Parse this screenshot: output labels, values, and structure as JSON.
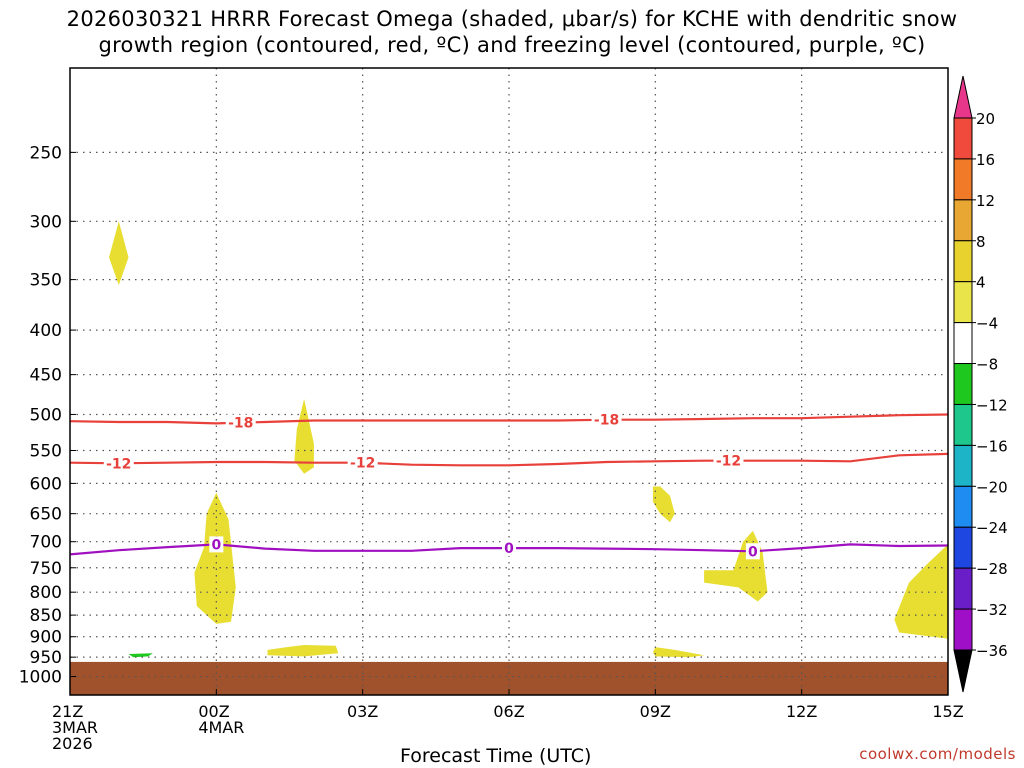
{
  "chart_data": {
    "type": "time-height-section",
    "title_line1": "2026030321 HRRR Forecast Omega (shaded, μbar/s) for KCHE with dendritic snow",
    "title_line2": "growth region (contoured, red, ºC) and freezing level (contoured, purple, ºC)",
    "xlabel": "Forecast Time (UTC)",
    "attribution": "coolwx.com/models",
    "x_range_hours": [
      0,
      18
    ],
    "x_ticks": [
      {
        "hour": 0,
        "lines": [
          "21Z",
          "3MAR",
          "2026"
        ]
      },
      {
        "hour": 3,
        "lines": [
          "00Z",
          "4MAR"
        ]
      },
      {
        "hour": 6,
        "lines": [
          "03Z"
        ]
      },
      {
        "hour": 9,
        "lines": [
          "06Z"
        ]
      },
      {
        "hour": 12,
        "lines": [
          "09Z"
        ]
      },
      {
        "hour": 15,
        "lines": [
          "12Z"
        ]
      },
      {
        "hour": 18,
        "lines": [
          "15Z"
        ]
      }
    ],
    "y_axis": "pressure (hPa)",
    "y_range_hpa": [
      1050,
      200
    ],
    "y_ticks": [
      250,
      300,
      350,
      400,
      450,
      500,
      550,
      600,
      650,
      700,
      750,
      800,
      850,
      900,
      950,
      1000
    ],
    "colorbar": {
      "labels": [
        20,
        16,
        12,
        8,
        4,
        -4,
        -8,
        -12,
        -16,
        -20,
        -24,
        -28,
        -32,
        -36
      ],
      "colors": [
        "#e8368a",
        "#f04a3c",
        "#f07a28",
        "#e8a632",
        "#e8d22e",
        "#e8e44a",
        "#ffffff",
        "#1fc81f",
        "#1ec88c",
        "#1eb4c8",
        "#1e8cf0",
        "#1e46e0",
        "#6a1ec8",
        "#a00fc8",
        "#a8a8a8",
        "#000000"
      ]
    },
    "contours": [
      {
        "name": "-18 °C isotherm",
        "color": "#e8403a",
        "label": "-18",
        "points": [
          [
            0,
            509
          ],
          [
            1,
            510
          ],
          [
            2,
            510
          ],
          [
            3,
            512
          ],
          [
            4,
            510
          ],
          [
            5,
            508
          ],
          [
            6,
            508
          ],
          [
            7,
            508
          ],
          [
            8,
            508
          ],
          [
            9,
            508
          ],
          [
            10,
            508
          ],
          [
            11,
            507
          ],
          [
            12,
            507
          ],
          [
            13,
            506
          ],
          [
            14,
            505
          ],
          [
            15,
            505
          ],
          [
            16,
            503
          ],
          [
            17,
            501
          ],
          [
            18,
            500
          ]
        ],
        "label_hours": [
          3.5,
          11
        ]
      },
      {
        "name": "-12 °C isotherm",
        "color": "#e8403a",
        "label": "-12",
        "points": [
          [
            0,
            568
          ],
          [
            1,
            569
          ],
          [
            2,
            568
          ],
          [
            3,
            567
          ],
          [
            4,
            567
          ],
          [
            5,
            568
          ],
          [
            6,
            568
          ],
          [
            7,
            571
          ],
          [
            8,
            572
          ],
          [
            9,
            572
          ],
          [
            10,
            570
          ],
          [
            11,
            567
          ],
          [
            12,
            566
          ],
          [
            13,
            565
          ],
          [
            14,
            565
          ],
          [
            15,
            565
          ],
          [
            16,
            566
          ],
          [
            17,
            557
          ],
          [
            18,
            555
          ]
        ],
        "label_hours": [
          1,
          6,
          13.5
        ]
      },
      {
        "name": "0 °C freezing level",
        "color": "#a010c0",
        "label": "0",
        "points": [
          [
            0,
            724
          ],
          [
            1,
            716
          ],
          [
            2,
            710
          ],
          [
            3,
            705
          ],
          [
            4,
            713
          ],
          [
            5,
            717
          ],
          [
            6,
            717
          ],
          [
            7,
            717
          ],
          [
            8,
            712
          ],
          [
            9,
            712
          ],
          [
            10,
            712
          ],
          [
            11,
            713
          ],
          [
            12,
            714
          ],
          [
            13,
            716
          ],
          [
            14,
            718
          ],
          [
            15,
            712
          ],
          [
            16,
            705
          ],
          [
            17,
            708
          ],
          [
            18,
            707
          ]
        ],
        "label_hours": [
          3,
          9,
          14
        ]
      }
    ],
    "omega_areas": [
      {
        "value_range": [
          4,
          8
        ],
        "color": "#e8de32",
        "points": [
          [
            1.0,
            300
          ],
          [
            1.2,
            330
          ],
          [
            1.0,
            355
          ],
          [
            0.8,
            330
          ]
        ]
      },
      {
        "value_range": [
          4,
          8
        ],
        "color": "#e8de32",
        "points": [
          [
            4.8,
            480
          ],
          [
            5.0,
            540
          ],
          [
            5.0,
            575
          ],
          [
            4.8,
            585
          ],
          [
            4.6,
            565
          ],
          [
            4.65,
            520
          ]
        ]
      },
      {
        "value_range": [
          4,
          8
        ],
        "color": "#e8de32",
        "points": [
          [
            3.0,
            615
          ],
          [
            3.25,
            660
          ],
          [
            3.4,
            790
          ],
          [
            3.3,
            865
          ],
          [
            3.0,
            870
          ],
          [
            2.6,
            830
          ],
          [
            2.55,
            760
          ],
          [
            2.75,
            710
          ],
          [
            2.8,
            650
          ]
        ]
      },
      {
        "value_range": [
          4,
          8
        ],
        "color": "#e8de32",
        "points": [
          [
            12.1,
            605
          ],
          [
            12.3,
            620
          ],
          [
            12.4,
            650
          ],
          [
            12.3,
            665
          ],
          [
            12.1,
            650
          ],
          [
            11.95,
            630
          ],
          [
            11.95,
            605
          ]
        ]
      },
      {
        "value_range": [
          4,
          8
        ],
        "color": "#e8de32",
        "points": [
          [
            14.0,
            680
          ],
          [
            14.2,
            720
          ],
          [
            14.3,
            800
          ],
          [
            14.1,
            820
          ],
          [
            13.7,
            790
          ],
          [
            13.0,
            780
          ],
          [
            13.0,
            755
          ],
          [
            13.6,
            755
          ],
          [
            13.8,
            700
          ]
        ]
      },
      {
        "value_range": [
          4,
          8
        ],
        "color": "#e8de32",
        "points": [
          [
            18.0,
            705
          ],
          [
            18.0,
            905
          ],
          [
            17.0,
            890
          ],
          [
            16.9,
            860
          ],
          [
            17.2,
            780
          ],
          [
            17.6,
            740
          ]
        ]
      },
      {
        "value_range": [
          4,
          8
        ],
        "color": "#e8de32",
        "points": [
          [
            4.8,
            920
          ],
          [
            5.45,
            922
          ],
          [
            5.5,
            940
          ],
          [
            4.8,
            948
          ],
          [
            4.05,
            945
          ],
          [
            4.05,
            932
          ],
          [
            4.5,
            924
          ]
        ]
      },
      {
        "value_range": [
          4,
          8
        ],
        "color": "#e8de32",
        "points": [
          [
            12.0,
            925
          ],
          [
            12.4,
            932
          ],
          [
            13.0,
            945
          ],
          [
            12.7,
            950
          ],
          [
            12.0,
            948
          ],
          [
            11.95,
            938
          ]
        ]
      },
      {
        "value_range": [
          -8,
          -4
        ],
        "color": "#1fc81f",
        "points": [
          [
            1.2,
            942
          ],
          [
            1.7,
            940
          ],
          [
            1.6,
            948
          ],
          [
            1.3,
            950
          ]
        ]
      }
    ],
    "terrain": {
      "color": "#a0522d",
      "surface_pressure_hpa": 962
    }
  }
}
